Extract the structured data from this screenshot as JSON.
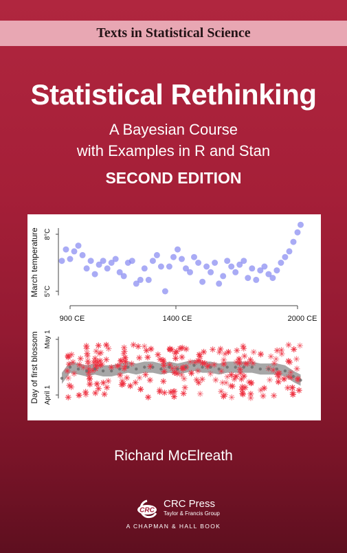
{
  "series": "Texts in Statistical Science",
  "title": "Statistical Rethinking",
  "subtitle_line1": "A Bayesian Course",
  "subtitle_line2": "with Examples in R and Stan",
  "edition": "SECOND EDITION",
  "author": "Richard McElreath",
  "publisher": {
    "logo_text": "CRC",
    "name": "CRC Press",
    "group": "Taylor & Francis Group",
    "imprint": "A CHAPMAN & HALL BOOK"
  },
  "colors": {
    "cover_red": "#a51f38",
    "series_band": "#e8a7b3",
    "temperature_series": "#7b7ef0",
    "blossom_points": "#ee2f3f",
    "trend_band": "#8a8a8a"
  },
  "chart_data": [
    {
      "type": "scatter",
      "ylabel": "March temperature",
      "yticks": [
        "8°C",
        "5°C"
      ],
      "ylim": [
        4.6,
        8.4
      ],
      "xticks": [
        "900 CE",
        "1400 CE",
        "2000 CE"
      ],
      "xlim": [
        800,
        2030
      ],
      "series": [
        {
          "x": [
            860,
            880,
            900,
            920,
            940,
            960,
            980,
            1000,
            1020,
            1040,
            1060,
            1080,
            1100,
            1120,
            1140,
            1160,
            1180,
            1200,
            1220,
            1240,
            1260,
            1280,
            1300,
            1320,
            1340,
            1360,
            1380,
            1400,
            1420,
            1440,
            1460,
            1480,
            1500,
            1520,
            1540,
            1560,
            1580,
            1600,
            1620,
            1640,
            1660,
            1680,
            1700,
            1720,
            1740,
            1760,
            1780,
            1800,
            1820,
            1840,
            1860,
            1880,
            1900,
            1920,
            1940,
            1960,
            1980,
            2000,
            2015
          ],
          "y": [
            6.6,
            7.2,
            6.7,
            7.1,
            7.4,
            6.9,
            6.2,
            6.6,
            5.9,
            6.4,
            6.6,
            6.2,
            6.5,
            6.7,
            6.0,
            5.8,
            6.5,
            6.6,
            5.4,
            5.6,
            6.2,
            5.6,
            6.6,
            6.9,
            6.3,
            5.0,
            6.3,
            6.8,
            7.2,
            6.7,
            6.2,
            6.0,
            6.8,
            6.5,
            5.5,
            6.3,
            6.0,
            6.5,
            5.4,
            5.8,
            6.6,
            6.3,
            6.0,
            6.4,
            6.6,
            5.7,
            6.2,
            5.6,
            6.1,
            6.3,
            5.9,
            5.7,
            6.1,
            6.5,
            6.8,
            7.1,
            7.6,
            8.1,
            8.5
          ]
        }
      ]
    },
    {
      "type": "scatter",
      "ylabel": "Day of first blossom",
      "yticks": [
        "May 1",
        "April 1"
      ],
      "ylim": [
        80,
        125
      ],
      "xlim": [
        800,
        2030
      ],
      "series": [
        {
          "x": [
            860,
            900,
            940,
            980,
            1020,
            1060,
            1100,
            1140,
            1180,
            1220,
            1260,
            1300,
            1340,
            1380,
            1420,
            1460,
            1500,
            1540,
            1580,
            1620,
            1660,
            1700,
            1740,
            1780,
            1820,
            1860,
            1900,
            1940,
            1980,
            2015
          ],
          "y": [
            100,
            106,
            105,
            104,
            105,
            104,
            104,
            105,
            106,
            105,
            106,
            106,
            105,
            106,
            105,
            106,
            107,
            106,
            106,
            105,
            106,
            106,
            106,
            106,
            105,
            105,
            105,
            104,
            101,
            99
          ]
        }
      ]
    }
  ]
}
